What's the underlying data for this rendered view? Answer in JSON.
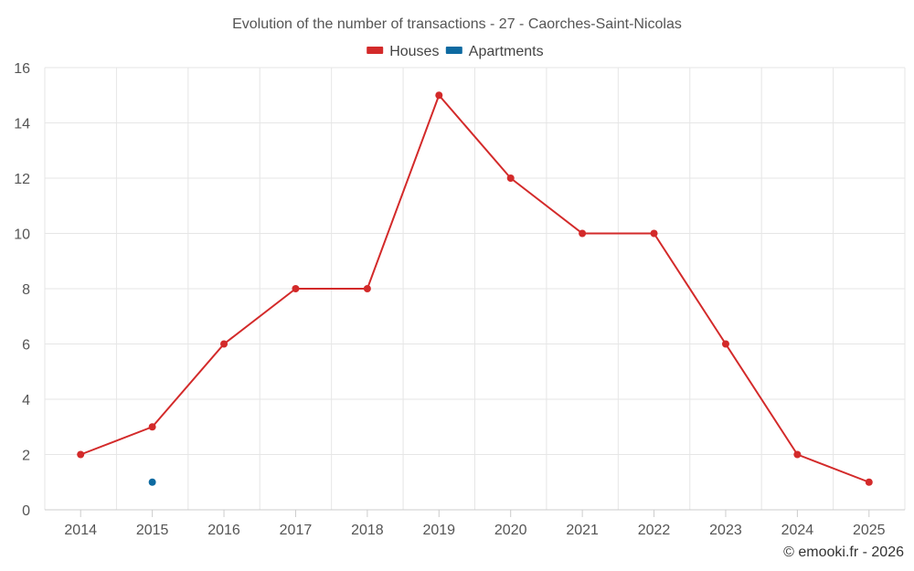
{
  "chart_data": {
    "type": "line",
    "title": "Evolution of the number of transactions - 27 - Caorches-Saint-Nicolas",
    "categories": [
      "2014",
      "2015",
      "2016",
      "2017",
      "2018",
      "2019",
      "2020",
      "2021",
      "2022",
      "2023",
      "2024",
      "2025"
    ],
    "ylim": [
      0,
      16
    ],
    "yticks": [
      "0",
      "2",
      "4",
      "6",
      "8",
      "10",
      "12",
      "14",
      "16"
    ],
    "grid": true,
    "legend_position": "top-center",
    "series": [
      {
        "name": "Houses",
        "color": "#d32a2a",
        "values": [
          2,
          3,
          6,
          8,
          8,
          15,
          12,
          10,
          10,
          6,
          2,
          1
        ]
      },
      {
        "name": "Apartments",
        "color": "#0d6aa1",
        "values": [
          null,
          1,
          null,
          null,
          null,
          null,
          null,
          null,
          null,
          null,
          null,
          null
        ]
      }
    ]
  },
  "credit": "© emooki.fr - 2026"
}
